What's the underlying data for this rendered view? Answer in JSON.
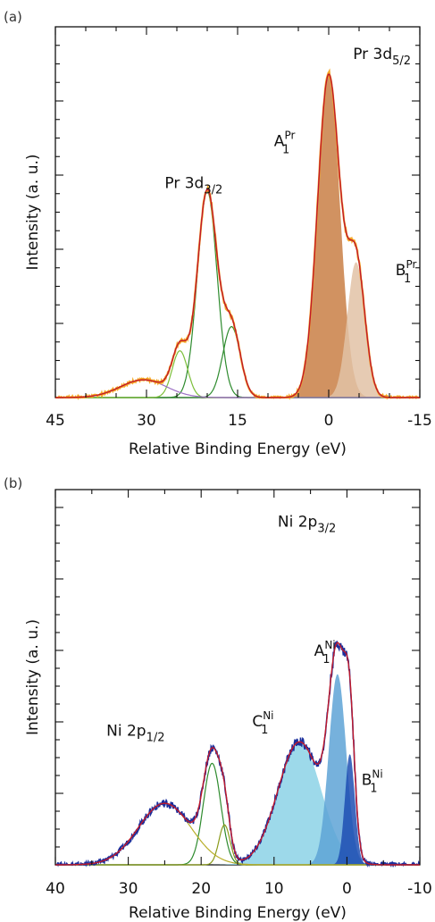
{
  "chart_data": [
    {
      "type": "line",
      "panel_label": "(a)",
      "xlabel": "Relative Binding Energy (eV)",
      "ylabel": "Intensity (a. u.)",
      "xlim": [
        45,
        -15
      ],
      "x_reversed": true,
      "xticks": [
        "45",
        "30",
        "15",
        "0",
        "-15"
      ],
      "xtick_values": [
        45,
        30,
        15,
        0,
        -15
      ],
      "y_tick_labels": false,
      "annotations": [
        {
          "base": "Pr 3d",
          "sub": "3/2",
          "sup": "",
          "color": "#111111",
          "x": 27,
          "y": 0.65
        },
        {
          "base": "Pr 3d",
          "sub": "5/2",
          "sup": "",
          "color": "#111111",
          "x": -4,
          "y": 1.05
        },
        {
          "base": "A",
          "sub": "1",
          "sup": "Pr",
          "color": "#d9823e",
          "x": 9,
          "y": 0.78
        },
        {
          "base": "B",
          "sub": "1",
          "sup": "Pr",
          "color": "#d9823e",
          "x": -11,
          "y": 0.38
        }
      ],
      "series": [
        {
          "component": "fill",
          "color": "#c97f45",
          "peak_type": "gaussian",
          "center": 0,
          "amplitude": 1.0,
          "fwhm": 4.3
        },
        {
          "component": "fill",
          "color": "#e2c2a6",
          "peak_type": "gaussian",
          "center": -4.5,
          "amplitude": 0.42,
          "fwhm": 3.4
        },
        {
          "component": "line",
          "color": "#2e8b2e",
          "peak_type": "gaussian",
          "center": 20,
          "amplitude": 0.64,
          "fwhm": 3.8
        },
        {
          "component": "line",
          "color": "#2e8b2e",
          "peak_type": "gaussian",
          "center": 16,
          "amplitude": 0.22,
          "fwhm": 3.4
        },
        {
          "component": "line",
          "color": "#7cbf3a",
          "peak_type": "gaussian",
          "center": 24.5,
          "amplitude": 0.145,
          "fwhm": 3.0
        },
        {
          "component": "line",
          "color": "#9b6fc4",
          "peak_type": "gaussian",
          "center": 30.5,
          "amplitude": 0.055,
          "fwhm": 9.0
        },
        {
          "component": "data",
          "color": "#f5a623",
          "peak_type": "sum"
        },
        {
          "component": "envelope",
          "color": "#c0192b",
          "peak_type": "sum"
        }
      ]
    },
    {
      "type": "line",
      "panel_label": "(b)",
      "xlabel": "Relative Binding Energy (eV)",
      "ylabel": "Intensity (a. u.)",
      "xlim": [
        40,
        -10
      ],
      "x_reversed": true,
      "xticks": [
        "40",
        "30",
        "20",
        "10",
        "0",
        "-10"
      ],
      "xtick_values": [
        40,
        30,
        20,
        10,
        0,
        -10
      ],
      "y_tick_labels": false,
      "annotations": [
        {
          "base": "Ni 2p",
          "sub": "1/2",
          "sup": "",
          "color": "#111111",
          "x": 33,
          "y": 0.42
        },
        {
          "base": "Ni 2p",
          "sub": "3/2",
          "sup": "",
          "color": "#111111",
          "x": 9.5,
          "y": 1.1
        },
        {
          "base": "A",
          "sub": "1",
          "sup": "Ni",
          "color": "#2f86c4",
          "x": 4.5,
          "y": 0.68
        },
        {
          "base": "C",
          "sub": "1",
          "sup": "Ni",
          "color": "#46b5d9",
          "x": 13,
          "y": 0.45
        },
        {
          "base": "B",
          "sub": "1",
          "sup": "Ni",
          "color": "#2a3fa0",
          "x": -2,
          "y": 0.26
        }
      ],
      "series": [
        {
          "component": "fill",
          "color": "#8cd2e6",
          "peak_type": "gaussian",
          "center": 6.5,
          "amplitude": 0.4,
          "fwhm": 7.0
        },
        {
          "component": "fill",
          "color": "#5ea3d6",
          "peak_type": "gaussian",
          "center": 1.3,
          "amplitude": 0.62,
          "fwhm": 2.8
        },
        {
          "component": "fill",
          "color": "#1f4fb3",
          "peak_type": "gaussian",
          "center": -0.4,
          "amplitude": 0.36,
          "fwhm": 1.6
        },
        {
          "component": "line",
          "color": "#2e8b2e",
          "peak_type": "gaussian",
          "center": 18.5,
          "amplitude": 0.33,
          "fwhm": 2.8
        },
        {
          "component": "line",
          "color": "#8a9a1a",
          "peak_type": "gaussian",
          "center": 16.8,
          "amplitude": 0.13,
          "fwhm": 1.8
        },
        {
          "component": "line",
          "color": "#b8ae2a",
          "peak_type": "gaussian",
          "center": 25,
          "amplitude": 0.2,
          "fwhm": 8.5
        },
        {
          "component": "data",
          "color": "#1a2e9c",
          "peak_type": "sum"
        },
        {
          "component": "envelope",
          "color": "#c0192b",
          "peak_type": "sum"
        }
      ]
    }
  ]
}
